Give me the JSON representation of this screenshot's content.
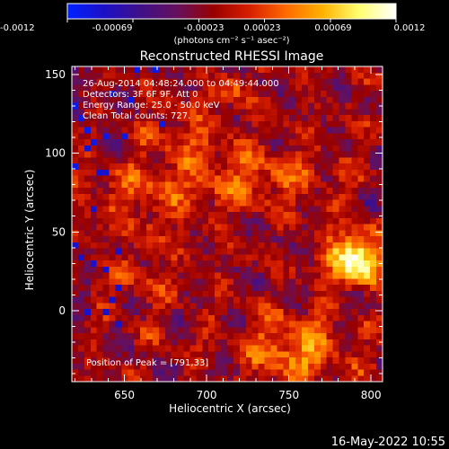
{
  "chart_data": {
    "type": "heatmap",
    "title": "Reconstructed RHESSI Image",
    "xlabel": "Heliocentric X (arcsec)",
    "ylabel": "Heliocentric Y (arcsec)",
    "xlim": [
      618,
      807
    ],
    "ylim": [
      -45,
      155
    ],
    "x_ticks": [
      650,
      700,
      750,
      800
    ],
    "y_ticks": [
      0,
      50,
      100,
      150
    ],
    "grid": false,
    "colorbar": {
      "min": -0.0012,
      "max": 0.0012,
      "tick_labels": [
        "-0.0012",
        "-0.00069",
        "-0.00023",
        "0.00023",
        "0.00069",
        "0.0012"
      ],
      "unit_label": "(photons cm⁻² s⁻¹ asec⁻²)"
    },
    "annotations": {
      "time_range": "26-Aug-2014 04:48:24.000 to 04:49:44.000",
      "detectors": "Detectors: 3F 6F 9F, Att 0",
      "energy_range": "Energy Range: 25.0 - 50.0 keV",
      "clean_counts": "Clean     Total counts: 727.",
      "peak": "Position of Peak = [791,33]"
    },
    "footer_date": "16-May-2022 10:55",
    "peak": {
      "x": 791,
      "y": 33
    },
    "colors": {
      "background": "#000000",
      "text": "#ffffff",
      "colormap": [
        "#0022ff",
        "#1c10c6",
        "#401088",
        "#65105d",
        "#990000",
        "#d81f00",
        "#ff6a00",
        "#ffb200",
        "#ffff70",
        "#ffffff"
      ]
    }
  }
}
